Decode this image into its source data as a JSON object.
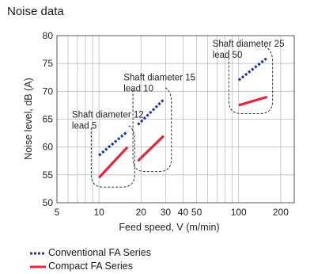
{
  "chart_data": {
    "type": "line",
    "title": "Noise data",
    "xlabel": "Feed speed, V (m/min)",
    "ylabel": "Noise level, dB (A)",
    "x_scale": "log",
    "xlim": [
      5,
      250
    ],
    "ylim": [
      50,
      80
    ],
    "grid": true,
    "x_ticks": [
      5,
      10,
      20,
      30,
      40,
      50,
      100,
      200
    ],
    "y_ticks": [
      50,
      55,
      60,
      65,
      70,
      75,
      80
    ],
    "series": [
      {
        "name": "Conventional FA Series",
        "color": "#1f3a93",
        "style": "dotted",
        "segments": [
          {
            "x": [
              10,
              16
            ],
            "y": [
              58.5,
              62.8
            ]
          },
          {
            "x": [
              19,
              29
            ],
            "y": [
              64,
              68.5
            ]
          },
          {
            "x": [
              100,
              160
            ],
            "y": [
              72,
              76
            ]
          }
        ]
      },
      {
        "name": "Compact FA Series",
        "color": "#e8243c",
        "style": "solid",
        "segments": [
          {
            "x": [
              10,
              16
            ],
            "y": [
              54.5,
              60
            ]
          },
          {
            "x": [
              19,
              29
            ],
            "y": [
              57.5,
              62
            ]
          },
          {
            "x": [
              100,
              160
            ],
            "y": [
              67.5,
              69
            ]
          }
        ]
      }
    ],
    "annotations": [
      {
        "lines": [
          "Shaft diameter 12",
          "lead 5"
        ],
        "x": 6.4,
        "y": 65.3
      },
      {
        "lines": [
          "Shaft diameter 15",
          "lead 10"
        ],
        "x": 15,
        "y": 72
      },
      {
        "lines": [
          "Shaft diameter 25",
          "lead 50"
        ],
        "x": 65,
        "y": 78
      }
    ],
    "groups": [
      {
        "xmin": 8.8,
        "xmax": 18,
        "ymin": 52.8,
        "ymax": 63.5
      },
      {
        "xmin": 17.5,
        "xmax": 33,
        "ymin": 55.6,
        "ymax": 70.3
      },
      {
        "xmin": 85,
        "xmax": 175,
        "ymin": 66,
        "ymax": 77.5
      }
    ]
  },
  "legend": [
    {
      "label": "Conventional FA Series",
      "color": "#1f3a93",
      "style": "dotted"
    },
    {
      "label": "Compact FA Series",
      "color": "#e8243c",
      "style": "solid"
    }
  ]
}
